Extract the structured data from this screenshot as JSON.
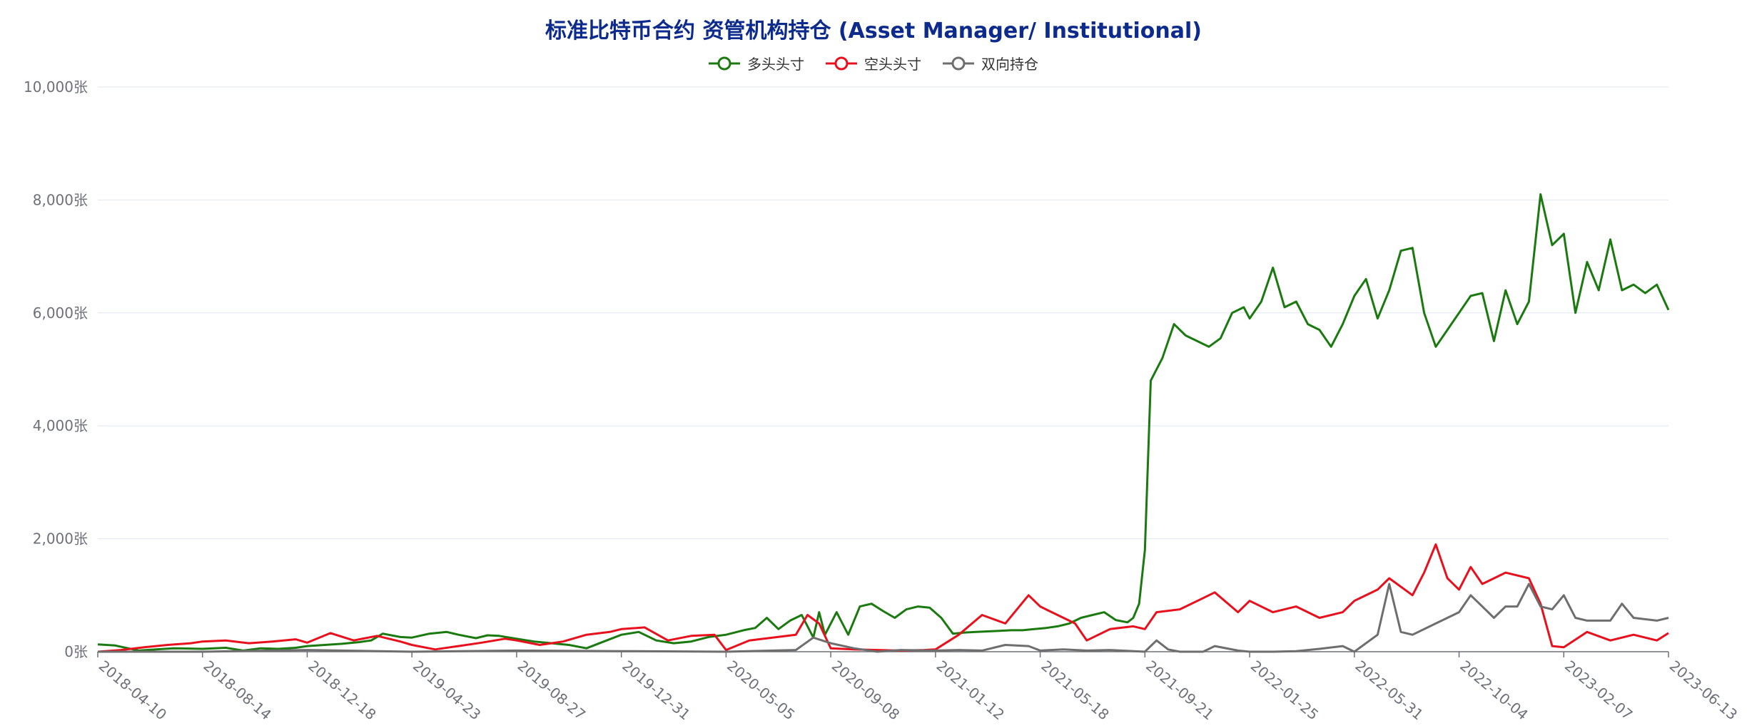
{
  "chart_data": {
    "type": "line",
    "title": "标准比特币合约 资管机构持仓 (Asset Manager/ Institutional)",
    "unit": "张",
    "y_tick_labels": [
      "0张",
      "2,000张",
      "4,000张",
      "6,000张",
      "8,000张",
      "10,000张"
    ],
    "y_ticks": [
      0,
      2000,
      4000,
      6000,
      8000,
      10000
    ],
    "ylim": [
      0,
      10000
    ],
    "x_tick_labels": [
      "2018-04-10",
      "2018-08-14",
      "2018-12-18",
      "2019-04-23",
      "2019-08-27",
      "2019-12-31",
      "2020-05-05",
      "2020-09-08",
      "2021-01-12",
      "2021-05-18",
      "2021-09-21",
      "2022-01-25",
      "2022-05-31",
      "2022-10-04",
      "2023-02-07",
      "2023-06-13"
    ],
    "x_start": "2018-04-10",
    "x_end": "2023-06-13",
    "grid": true,
    "legend_position": "top-center",
    "series": [
      {
        "name": "多头头寸",
        "color": "#1a7a0f",
        "points": [
          [
            "2018-04-10",
            130
          ],
          [
            "2018-05-01",
            110
          ],
          [
            "2018-05-29",
            20
          ],
          [
            "2018-06-19",
            40
          ],
          [
            "2018-07-10",
            60
          ],
          [
            "2018-08-14",
            50
          ],
          [
            "2018-09-11",
            70
          ],
          [
            "2018-10-02",
            20
          ],
          [
            "2018-10-23",
            60
          ],
          [
            "2018-11-13",
            50
          ],
          [
            "2018-12-04",
            70
          ],
          [
            "2018-12-18",
            100
          ],
          [
            "2019-01-08",
            120
          ],
          [
            "2019-01-29",
            140
          ],
          [
            "2019-02-19",
            170
          ],
          [
            "2019-03-05",
            200
          ],
          [
            "2019-03-19",
            320
          ],
          [
            "2019-04-09",
            260
          ],
          [
            "2019-04-23",
            250
          ],
          [
            "2019-05-14",
            320
          ],
          [
            "2019-06-04",
            350
          ],
          [
            "2019-06-18",
            300
          ],
          [
            "2019-07-09",
            240
          ],
          [
            "2019-07-23",
            290
          ],
          [
            "2019-08-06",
            280
          ],
          [
            "2019-08-27",
            230
          ],
          [
            "2019-09-17",
            180
          ],
          [
            "2019-10-08",
            150
          ],
          [
            "2019-10-29",
            120
          ],
          [
            "2019-11-19",
            60
          ],
          [
            "2019-12-10",
            180
          ],
          [
            "2019-12-31",
            300
          ],
          [
            "2020-01-21",
            350
          ],
          [
            "2020-02-11",
            200
          ],
          [
            "2020-03-03",
            150
          ],
          [
            "2020-03-24",
            180
          ],
          [
            "2020-04-14",
            260
          ],
          [
            "2020-05-05",
            300
          ],
          [
            "2020-05-26",
            380
          ],
          [
            "2020-06-09",
            420
          ],
          [
            "2020-06-23",
            600
          ],
          [
            "2020-07-07",
            400
          ],
          [
            "2020-07-21",
            550
          ],
          [
            "2020-08-04",
            650
          ],
          [
            "2020-08-18",
            250
          ],
          [
            "2020-08-25",
            700
          ],
          [
            "2020-09-01",
            300
          ],
          [
            "2020-09-15",
            700
          ],
          [
            "2020-09-29",
            300
          ],
          [
            "2020-10-13",
            800
          ],
          [
            "2020-10-27",
            850
          ],
          [
            "2020-11-10",
            720
          ],
          [
            "2020-11-24",
            600
          ],
          [
            "2020-12-08",
            750
          ],
          [
            "2020-12-22",
            800
          ],
          [
            "2021-01-05",
            780
          ],
          [
            "2021-01-19",
            600
          ],
          [
            "2021-02-02",
            320
          ],
          [
            "2021-02-16",
            340
          ],
          [
            "2021-03-02",
            350
          ],
          [
            "2021-03-16",
            360
          ],
          [
            "2021-03-30",
            370
          ],
          [
            "2021-04-13",
            380
          ],
          [
            "2021-04-27",
            380
          ],
          [
            "2021-05-11",
            400
          ],
          [
            "2021-05-25",
            420
          ],
          [
            "2021-06-08",
            450
          ],
          [
            "2021-06-22",
            500
          ],
          [
            "2021-07-06",
            600
          ],
          [
            "2021-07-20",
            650
          ],
          [
            "2021-08-03",
            700
          ],
          [
            "2021-08-17",
            560
          ],
          [
            "2021-08-31",
            520
          ],
          [
            "2021-09-07",
            600
          ],
          [
            "2021-09-14",
            850
          ],
          [
            "2021-09-21",
            1800
          ],
          [
            "2021-09-28",
            4800
          ],
          [
            "2021-10-12",
            5200
          ],
          [
            "2021-10-26",
            5800
          ],
          [
            "2021-11-09",
            5600
          ],
          [
            "2021-11-23",
            5500
          ],
          [
            "2021-12-07",
            5400
          ],
          [
            "2021-12-21",
            5550
          ],
          [
            "2022-01-04",
            6000
          ],
          [
            "2022-01-18",
            6100
          ],
          [
            "2022-01-25",
            5900
          ],
          [
            "2022-02-08",
            6200
          ],
          [
            "2022-02-22",
            6800
          ],
          [
            "2022-03-08",
            6100
          ],
          [
            "2022-03-22",
            6200
          ],
          [
            "2022-04-05",
            5800
          ],
          [
            "2022-04-19",
            5700
          ],
          [
            "2022-05-03",
            5400
          ],
          [
            "2022-05-17",
            5800
          ],
          [
            "2022-05-31",
            6300
          ],
          [
            "2022-06-14",
            6600
          ],
          [
            "2022-06-28",
            5900
          ],
          [
            "2022-07-12",
            6400
          ],
          [
            "2022-07-26",
            7100
          ],
          [
            "2022-08-09",
            7150
          ],
          [
            "2022-08-23",
            6000
          ],
          [
            "2022-09-06",
            5400
          ],
          [
            "2022-09-20",
            5700
          ],
          [
            "2022-10-04",
            6000
          ],
          [
            "2022-10-18",
            6300
          ],
          [
            "2022-11-01",
            6350
          ],
          [
            "2022-11-15",
            5500
          ],
          [
            "2022-11-29",
            6400
          ],
          [
            "2022-12-13",
            5800
          ],
          [
            "2022-12-27",
            6200
          ],
          [
            "2023-01-10",
            8100
          ],
          [
            "2023-01-24",
            7200
          ],
          [
            "2023-02-07",
            7400
          ],
          [
            "2023-02-21",
            6000
          ],
          [
            "2023-03-07",
            6900
          ],
          [
            "2023-03-21",
            6400
          ],
          [
            "2023-04-04",
            7300
          ],
          [
            "2023-04-18",
            6400
          ],
          [
            "2023-05-02",
            6500
          ],
          [
            "2023-05-16",
            6350
          ],
          [
            "2023-05-30",
            6500
          ],
          [
            "2023-06-13",
            6050
          ]
        ]
      },
      {
        "name": "空头头寸",
        "color": "#e8101c",
        "points": [
          [
            "2018-04-10",
            0
          ],
          [
            "2018-05-08",
            30
          ],
          [
            "2018-06-05",
            80
          ],
          [
            "2018-07-03",
            120
          ],
          [
            "2018-07-31",
            150
          ],
          [
            "2018-08-14",
            180
          ],
          [
            "2018-09-11",
            200
          ],
          [
            "2018-10-09",
            150
          ],
          [
            "2018-11-06",
            180
          ],
          [
            "2018-12-04",
            220
          ],
          [
            "2018-12-18",
            160
          ],
          [
            "2019-01-15",
            330
          ],
          [
            "2019-02-12",
            200
          ],
          [
            "2019-03-12",
            280
          ],
          [
            "2019-04-09",
            180
          ],
          [
            "2019-04-23",
            120
          ],
          [
            "2019-05-21",
            40
          ],
          [
            "2019-06-18",
            100
          ],
          [
            "2019-07-16",
            160
          ],
          [
            "2019-08-13",
            230
          ],
          [
            "2019-08-27",
            200
          ],
          [
            "2019-09-24",
            120
          ],
          [
            "2019-10-22",
            180
          ],
          [
            "2019-11-19",
            300
          ],
          [
            "2019-12-17",
            350
          ],
          [
            "2019-12-31",
            400
          ],
          [
            "2020-01-28",
            430
          ],
          [
            "2020-02-25",
            200
          ],
          [
            "2020-03-24",
            280
          ],
          [
            "2020-04-21",
            300
          ],
          [
            "2020-05-05",
            30
          ],
          [
            "2020-06-02",
            200
          ],
          [
            "2020-06-30",
            250
          ],
          [
            "2020-07-28",
            300
          ],
          [
            "2020-08-11",
            650
          ],
          [
            "2020-08-25",
            500
          ],
          [
            "2020-09-08",
            60
          ],
          [
            "2020-10-06",
            40
          ],
          [
            "2020-11-03",
            30
          ],
          [
            "2020-12-01",
            20
          ],
          [
            "2020-12-29",
            30
          ],
          [
            "2021-01-12",
            40
          ],
          [
            "2021-02-09",
            300
          ],
          [
            "2021-03-09",
            650
          ],
          [
            "2021-04-06",
            500
          ],
          [
            "2021-05-04",
            1000
          ],
          [
            "2021-05-18",
            800
          ],
          [
            "2021-06-01",
            700
          ],
          [
            "2021-06-29",
            500
          ],
          [
            "2021-07-13",
            200
          ],
          [
            "2021-08-10",
            400
          ],
          [
            "2021-09-07",
            450
          ],
          [
            "2021-09-21",
            400
          ],
          [
            "2021-10-05",
            700
          ],
          [
            "2021-11-02",
            750
          ],
          [
            "2021-11-30",
            950
          ],
          [
            "2021-12-14",
            1050
          ],
          [
            "2022-01-11",
            700
          ],
          [
            "2022-01-25",
            900
          ],
          [
            "2022-02-22",
            700
          ],
          [
            "2022-03-22",
            800
          ],
          [
            "2022-04-19",
            600
          ],
          [
            "2022-05-17",
            700
          ],
          [
            "2022-05-31",
            900
          ],
          [
            "2022-06-28",
            1100
          ],
          [
            "2022-07-12",
            1300
          ],
          [
            "2022-08-09",
            1000
          ],
          [
            "2022-08-23",
            1400
          ],
          [
            "2022-09-06",
            1900
          ],
          [
            "2022-09-20",
            1300
          ],
          [
            "2022-10-04",
            1100
          ],
          [
            "2022-10-18",
            1500
          ],
          [
            "2022-11-01",
            1200
          ],
          [
            "2022-11-29",
            1400
          ],
          [
            "2022-12-27",
            1300
          ],
          [
            "2023-01-10",
            850
          ],
          [
            "2023-01-24",
            100
          ],
          [
            "2023-02-07",
            80
          ],
          [
            "2023-03-07",
            350
          ],
          [
            "2023-04-04",
            200
          ],
          [
            "2023-05-02",
            300
          ],
          [
            "2023-05-30",
            200
          ],
          [
            "2023-06-13",
            330
          ]
        ]
      },
      {
        "name": "双向持仓",
        "color": "#6e6e6e",
        "points": [
          [
            "2018-04-10",
            0
          ],
          [
            "2018-08-14",
            0
          ],
          [
            "2018-12-18",
            30
          ],
          [
            "2019-04-23",
            0
          ],
          [
            "2019-08-27",
            20
          ],
          [
            "2019-12-31",
            10
          ],
          [
            "2020-05-05",
            0
          ],
          [
            "2020-07-28",
            30
          ],
          [
            "2020-08-18",
            250
          ],
          [
            "2020-09-08",
            150
          ],
          [
            "2020-10-06",
            60
          ],
          [
            "2020-11-03",
            0
          ],
          [
            "2020-12-01",
            30
          ],
          [
            "2021-01-12",
            20
          ],
          [
            "2021-02-09",
            30
          ],
          [
            "2021-03-09",
            20
          ],
          [
            "2021-04-06",
            120
          ],
          [
            "2021-05-04",
            100
          ],
          [
            "2021-05-18",
            20
          ],
          [
            "2021-06-15",
            40
          ],
          [
            "2021-07-13",
            20
          ],
          [
            "2021-08-10",
            30
          ],
          [
            "2021-09-21",
            0
          ],
          [
            "2021-10-05",
            200
          ],
          [
            "2021-10-19",
            40
          ],
          [
            "2021-11-02",
            0
          ],
          [
            "2021-11-30",
            0
          ],
          [
            "2021-12-14",
            100
          ],
          [
            "2022-01-11",
            20
          ],
          [
            "2022-01-25",
            0
          ],
          [
            "2022-02-22",
            0
          ],
          [
            "2022-03-22",
            10
          ],
          [
            "2022-04-19",
            50
          ],
          [
            "2022-05-17",
            100
          ],
          [
            "2022-05-31",
            0
          ],
          [
            "2022-06-28",
            300
          ],
          [
            "2022-07-12",
            1200
          ],
          [
            "2022-07-26",
            350
          ],
          [
            "2022-08-09",
            300
          ],
          [
            "2022-09-06",
            500
          ],
          [
            "2022-10-04",
            700
          ],
          [
            "2022-10-18",
            1000
          ],
          [
            "2022-11-01",
            800
          ],
          [
            "2022-11-15",
            600
          ],
          [
            "2022-11-29",
            800
          ],
          [
            "2022-12-13",
            800
          ],
          [
            "2022-12-27",
            1200
          ],
          [
            "2023-01-10",
            800
          ],
          [
            "2023-01-24",
            750
          ],
          [
            "2023-02-07",
            1000
          ],
          [
            "2023-02-21",
            600
          ],
          [
            "2023-03-07",
            550
          ],
          [
            "2023-04-04",
            550
          ],
          [
            "2023-04-18",
            850
          ],
          [
            "2023-05-02",
            600
          ],
          [
            "2023-05-30",
            550
          ],
          [
            "2023-06-13",
            600
          ]
        ]
      }
    ]
  }
}
